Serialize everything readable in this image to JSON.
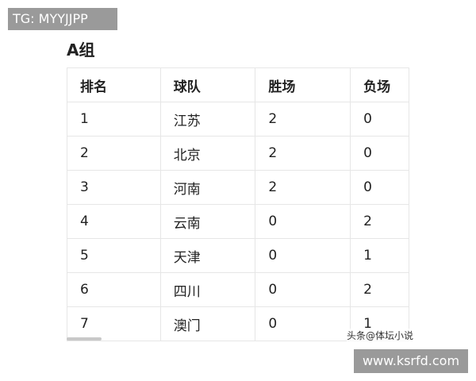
{
  "watermark_top": "TG: MYYJJPP",
  "title": "A组",
  "table": {
    "header": [
      "排名",
      "球队",
      "胜场",
      "负场"
    ],
    "rows": [
      [
        1,
        "江苏",
        2,
        0
      ],
      [
        2,
        "北京",
        2,
        0
      ],
      [
        3,
        "河南",
        2,
        0
      ],
      [
        4,
        "云南",
        0,
        2
      ],
      [
        5,
        "天津",
        0,
        1
      ],
      [
        6,
        "四川",
        0,
        2
      ],
      [
        7,
        "澳门",
        0,
        1
      ]
    ]
  },
  "source_mark": "头条@体坛小说",
  "watermark_bottom": "www.ksrfd.com"
}
